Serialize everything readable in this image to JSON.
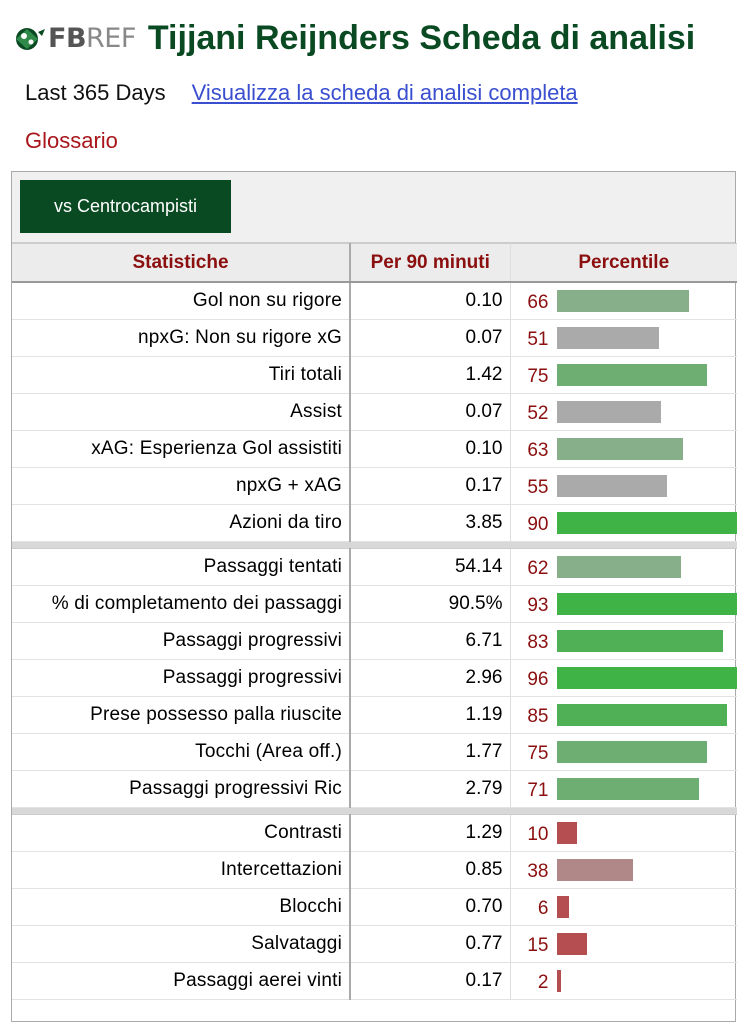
{
  "header": {
    "logo_fb": "FB",
    "logo_ref": "REF",
    "title": "Tijjani Reijnders Scheda di analisi"
  },
  "subheader": {
    "period": "Last 365 Days",
    "full_report_link": "Visualizza la scheda di analisi completa",
    "glossary_link": "Glossario"
  },
  "tabs": [
    {
      "label": "vs Centrocampisti",
      "active": true
    }
  ],
  "table": {
    "headers": {
      "stat": "Statistiche",
      "per90": "Per 90 minuti",
      "percentile": "Percentile"
    },
    "colors": {
      "high": "#3fb345",
      "mid_high": "#6eae72",
      "mid": "#87b08a",
      "neutral": "#a9aaa9",
      "low_mid": "#b08888",
      "low": "#b54e50"
    },
    "groups": [
      [
        {
          "stat": "Gol non su rigore",
          "per90": "0.10",
          "percentile": 66,
          "color": "#87b08a"
        },
        {
          "stat": "npxG: Non su rigore xG",
          "per90": "0.07",
          "percentile": 51,
          "color": "#a9aaa9"
        },
        {
          "stat": "Tiri totali",
          "per90": "1.42",
          "percentile": 75,
          "color": "#6eae72"
        },
        {
          "stat": "Assist",
          "per90": "0.07",
          "percentile": 52,
          "color": "#a9aaa9"
        },
        {
          "stat": "xAG: Esperienza Gol assistiti",
          "per90": "0.10",
          "percentile": 63,
          "color": "#87b08a"
        },
        {
          "stat": "npxG + xAG",
          "per90": "0.17",
          "percentile": 55,
          "color": "#a9aaa9"
        },
        {
          "stat": "Azioni da tiro",
          "per90": "3.85",
          "percentile": 90,
          "color": "#3fb345"
        }
      ],
      [
        {
          "stat": "Passaggi tentati",
          "per90": "54.14",
          "percentile": 62,
          "color": "#87b08a"
        },
        {
          "stat": "% di completamento dei passaggi",
          "per90": "90.5%",
          "percentile": 93,
          "color": "#3fb345"
        },
        {
          "stat": "Passaggi progressivi",
          "per90": "6.71",
          "percentile": 83,
          "color": "#4fb055"
        },
        {
          "stat": "Passaggi progressivi",
          "per90": "2.96",
          "percentile": 96,
          "color": "#3fb345"
        },
        {
          "stat": "Prese possesso palla riuscite",
          "per90": "1.19",
          "percentile": 85,
          "color": "#4fb055"
        },
        {
          "stat": "Tocchi (Area off.)",
          "per90": "1.77",
          "percentile": 75,
          "color": "#6eae72"
        },
        {
          "stat": "Passaggi progressivi Ric",
          "per90": "2.79",
          "percentile": 71,
          "color": "#6eae72"
        }
      ],
      [
        {
          "stat": "Contrasti",
          "per90": "1.29",
          "percentile": 10,
          "color": "#b54e50"
        },
        {
          "stat": "Intercettazioni",
          "per90": "0.85",
          "percentile": 38,
          "color": "#b08888"
        },
        {
          "stat": "Blocchi",
          "per90": "0.70",
          "percentile": 6,
          "color": "#b54e50"
        },
        {
          "stat": "Salvataggi",
          "per90": "0.77",
          "percentile": 15,
          "color": "#b54e50"
        },
        {
          "stat": "Passaggi aerei vinti",
          "per90": "0.17",
          "percentile": 2,
          "color": "#b54e50"
        }
      ]
    ]
  }
}
